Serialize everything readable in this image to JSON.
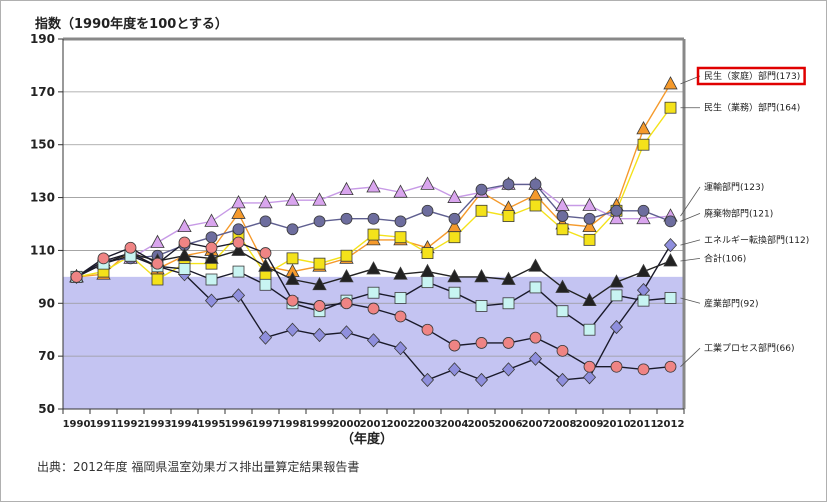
{
  "source_note": "出典：2012年度 福岡県温室効果ガス排出量算定結果報告書",
  "chart_data": {
    "type": "line",
    "title": "指数（1990年度を100とする）",
    "xlabel": "（年度）",
    "ylabel": "",
    "ylim": [
      50,
      190
    ],
    "yticks": [
      50,
      70,
      90,
      110,
      130,
      150,
      170,
      190
    ],
    "categories": [
      "1990",
      "1991",
      "1992",
      "1993",
      "1994",
      "1995",
      "1996",
      "1997",
      "1998",
      "1999",
      "2000",
      "2001",
      "2002",
      "2003",
      "2004",
      "2005",
      "2006",
      "2007",
      "2008",
      "2009",
      "2010",
      "2011",
      "2012"
    ],
    "reference_band_max": 100,
    "colors": {
      "band": "#c4c4f2",
      "grid": "#999999",
      "frame_top_right": "#888888",
      "highlight_box": "#e00000"
    },
    "series": [
      {
        "name": "民生（家庭）部門(173)",
        "label_y": 176,
        "highlight": true,
        "marker": "triangle",
        "color": "#f59a2c",
        "line": "#f59a2c",
        "values": [
          100,
          101,
          110,
          103,
          108,
          110,
          124,
          104,
          102,
          104,
          107,
          114,
          114,
          111,
          119,
          132,
          126,
          131,
          120,
          119,
          127,
          156,
          173
        ]
      },
      {
        "name": "民生（業務）部門(164)",
        "label_y": 164,
        "marker": "square",
        "color": "#f4e21a",
        "line": "#f4e21a",
        "values": [
          100,
          102,
          108,
          99,
          105,
          105,
          116,
          101,
          107,
          105,
          108,
          116,
          115,
          109,
          115,
          125,
          123,
          127,
          118,
          114,
          125,
          150,
          164
        ]
      },
      {
        "name": "運輸部門(123)",
        "label_y": 134,
        "marker": "triangle",
        "color": "#d9a5ee",
        "line": "#c79ae6",
        "values": [
          100,
          106,
          107,
          113,
          119,
          121,
          128,
          128,
          129,
          129,
          133,
          134,
          132,
          135,
          130,
          132,
          135,
          135,
          127,
          127,
          122,
          122,
          123
        ]
      },
      {
        "name": "廃棄物部門(121)",
        "label_y": 124,
        "marker": "circle",
        "color": "#6d6d9e",
        "line": "#5f5f90",
        "values": [
          100,
          106,
          107,
          108,
          112,
          115,
          118,
          121,
          118,
          121,
          122,
          122,
          121,
          125,
          122,
          133,
          135,
          135,
          123,
          122,
          125,
          125,
          121
        ]
      },
      {
        "name": "エネルギー転換部門(112)",
        "label_y": 114,
        "marker": "diamond",
        "color": "#8f8fdd",
        "line": "#1a1a2a",
        "values": [
          100,
          106,
          109,
          104,
          101,
          91,
          93,
          77,
          80,
          78,
          79,
          76,
          73,
          61,
          65,
          61,
          65,
          69,
          61,
          62,
          81,
          95,
          112
        ]
      },
      {
        "name": "合計(106)",
        "label_y": 107,
        "marker": "triangle",
        "color": "#222222",
        "line": "#222222",
        "values": [
          100,
          105,
          109,
          106,
          108,
          107,
          110,
          104,
          99,
          97,
          100,
          103,
          101,
          102,
          100,
          100,
          99,
          104,
          96,
          91,
          98,
          102,
          106
        ]
      },
      {
        "name": "産業部門(92)",
        "label_y": 90,
        "marker": "square",
        "color": "#c8f4f2",
        "line": "#1a1a2a",
        "values": [
          100,
          105,
          108,
          104,
          103,
          99,
          102,
          97,
          90,
          87,
          91,
          94,
          92,
          98,
          94,
          89,
          90,
          96,
          87,
          80,
          93,
          91,
          92
        ]
      },
      {
        "name": "工業プロセス部門(66)",
        "label_y": 73,
        "marker": "circle",
        "color": "#ef8484",
        "line": "#1a1a2a",
        "values": [
          100,
          107,
          111,
          105,
          113,
          111,
          113,
          109,
          91,
          89,
          90,
          88,
          85,
          80,
          74,
          75,
          75,
          77,
          72,
          66,
          66,
          65,
          66
        ]
      }
    ]
  }
}
